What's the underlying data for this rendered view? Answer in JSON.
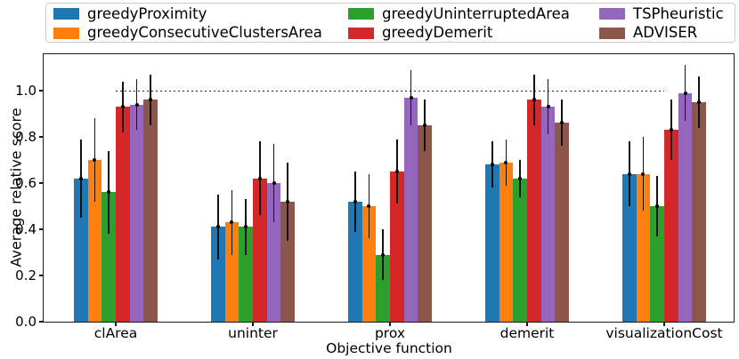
{
  "chart_data": {
    "type": "bar",
    "title": "",
    "xlabel": "Objective function",
    "ylabel": "Average relative score",
    "categories": [
      "clArea",
      "uninter",
      "prox",
      "demerit",
      "visualizationCost"
    ],
    "series": [
      {
        "name": "greedyProximity",
        "color": "#1f77b4",
        "values": [
          0.62,
          0.41,
          0.52,
          0.68,
          0.64
        ],
        "errors": [
          0.17,
          0.14,
          0.13,
          0.1,
          0.14
        ]
      },
      {
        "name": "greedyConsecutiveClustersArea",
        "color": "#ff7f0e",
        "values": [
          0.7,
          0.43,
          0.5,
          0.69,
          0.64
        ],
        "errors": [
          0.18,
          0.14,
          0.14,
          0.1,
          0.16
        ]
      },
      {
        "name": "greedyUninterruptedArea",
        "color": "#2ca02c",
        "values": [
          0.56,
          0.41,
          0.29,
          0.62,
          0.5
        ],
        "errors": [
          0.18,
          0.12,
          0.11,
          0.08,
          0.13
        ]
      },
      {
        "name": "greedyDemerit",
        "color": "#d62728",
        "values": [
          0.93,
          0.62,
          0.65,
          0.96,
          0.83
        ],
        "errors": [
          0.11,
          0.16,
          0.14,
          0.11,
          0.13
        ]
      },
      {
        "name": "TSPheuristic",
        "color": "#9467bd",
        "values": [
          0.94,
          0.6,
          0.97,
          0.93,
          0.99
        ],
        "errors": [
          0.11,
          0.17,
          0.12,
          0.12,
          0.12
        ]
      },
      {
        "name": "ADVISER",
        "color": "#8c564b",
        "values": [
          0.96,
          0.52,
          0.85,
          0.86,
          0.95
        ],
        "errors": [
          0.11,
          0.17,
          0.11,
          0.1,
          0.11
        ]
      }
    ],
    "yticks": [
      "0.0",
      "0.2",
      "0.4",
      "0.6",
      "0.8",
      "1.0"
    ],
    "ylim": [
      0,
      1.16
    ],
    "reference_line": {
      "y": 1.0,
      "style": "dashed",
      "x_span_categories": [
        0,
        4
      ]
    },
    "legend_position": "top",
    "legend_ncol": 3,
    "error_bars": true,
    "grid": false
  }
}
